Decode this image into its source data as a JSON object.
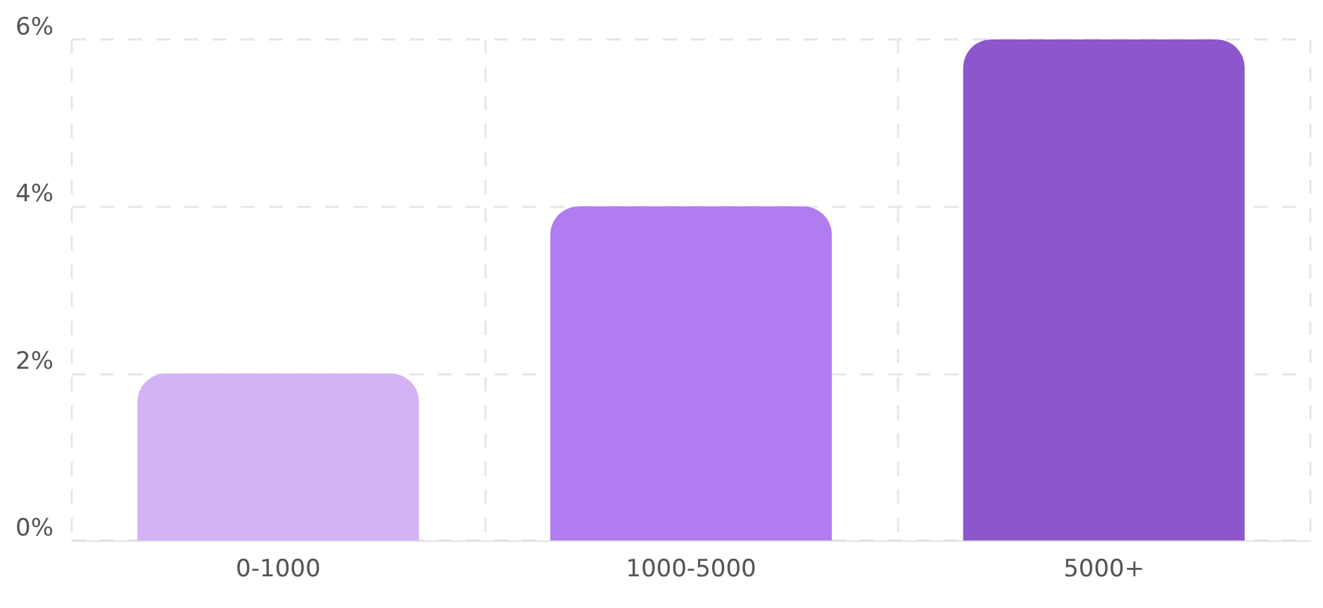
{
  "chart_data": {
    "type": "bar",
    "categories": [
      "0-1000",
      "1000-5000",
      "5000+"
    ],
    "values": [
      2,
      4,
      6
    ],
    "colors": [
      "#d3b3f5",
      "#b07cf0",
      "#8c56cc"
    ],
    "ylim": [
      0,
      6
    ],
    "yticks": [
      {
        "value": 0,
        "label": "0%"
      },
      {
        "value": 2,
        "label": "2%"
      },
      {
        "value": 4,
        "label": "4%"
      },
      {
        "value": 6,
        "label": "6%"
      }
    ],
    "grid": true
  }
}
